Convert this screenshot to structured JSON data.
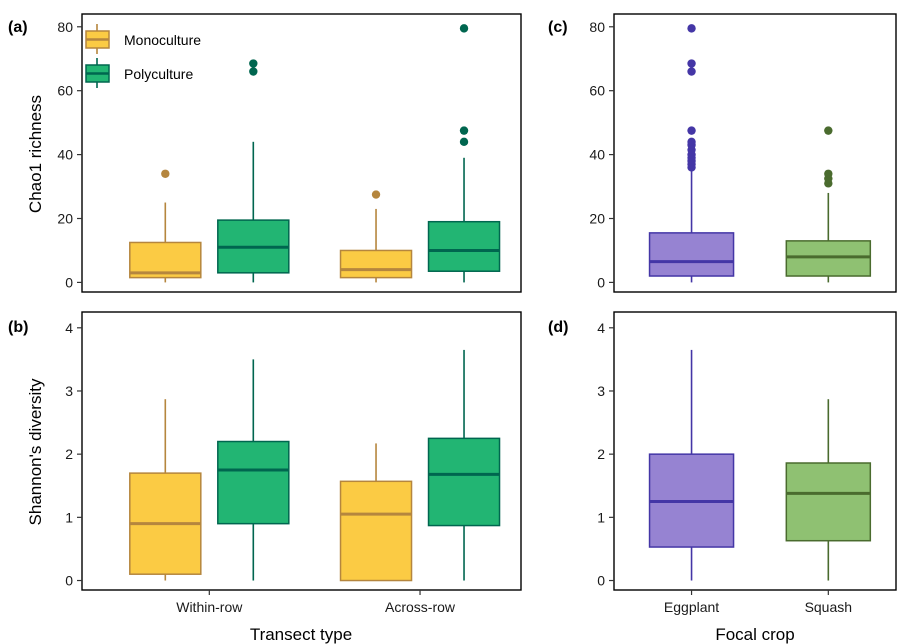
{
  "colors": {
    "mono_fill": "#FBCB44",
    "mono_line": "#B5863E",
    "poly_fill": "#22B573",
    "poly_line": "#00664F",
    "egg_fill": "#9683D2",
    "egg_line": "#4436A6",
    "squash_fill": "#8FC172",
    "squash_line": "#4A6B2E"
  },
  "legend": {
    "items": [
      "Monoculture",
      "Polyculture"
    ],
    "placement": "top-left"
  },
  "chart_data": [
    {
      "panel": "(a)",
      "type": "box",
      "ylabel": "Chao1 richness",
      "ylim": [
        -3,
        84
      ],
      "yticks": [
        0,
        20,
        40,
        60,
        80
      ],
      "categories": [
        "Within-row",
        "Across-row"
      ],
      "series": [
        {
          "name": "Monoculture",
          "boxes": [
            {
              "min": 0,
              "q1": 1.5,
              "median": 3,
              "q3": 12.5,
              "max": 25,
              "outliers": [
                34
              ]
            },
            {
              "min": 0,
              "q1": 1.5,
              "median": 4,
              "q3": 10,
              "max": 23,
              "outliers": [
                27.5
              ]
            }
          ]
        },
        {
          "name": "Polyculture",
          "boxes": [
            {
              "min": 0,
              "q1": 3,
              "median": 11,
              "q3": 19.5,
              "max": 44,
              "outliers": [
                66,
                68.5
              ]
            },
            {
              "min": 0,
              "q1": 3.5,
              "median": 10,
              "q3": 19,
              "max": 39,
              "outliers": [
                44,
                47.5,
                79.5
              ]
            }
          ]
        }
      ]
    },
    {
      "panel": "(b)",
      "type": "box",
      "ylabel": "Shannon's diversity",
      "xlabel": "Transect type",
      "ylim": [
        -0.15,
        4.25
      ],
      "yticks": [
        0,
        1,
        2,
        3,
        4
      ],
      "categories": [
        "Within-row",
        "Across-row"
      ],
      "series": [
        {
          "name": "Monoculture",
          "boxes": [
            {
              "min": 0,
              "q1": 0.1,
              "median": 0.9,
              "q3": 1.7,
              "max": 2.87,
              "outliers": []
            },
            {
              "min": 0,
              "q1": 0,
              "median": 1.05,
              "q3": 1.57,
              "max": 2.17,
              "outliers": []
            }
          ]
        },
        {
          "name": "Polyculture",
          "boxes": [
            {
              "min": 0,
              "q1": 0.9,
              "median": 1.75,
              "q3": 2.2,
              "max": 3.5,
              "outliers": []
            },
            {
              "min": 0,
              "q1": 0.87,
              "median": 1.68,
              "q3": 2.25,
              "max": 3.65,
              "outliers": []
            }
          ]
        }
      ]
    },
    {
      "panel": "(c)",
      "type": "box",
      "ylim": [
        -3,
        84
      ],
      "yticks": [
        0,
        20,
        40,
        60,
        80
      ],
      "categories": [
        "Eggplant",
        "Squash"
      ],
      "boxes": [
        {
          "name": "Eggplant",
          "min": 0,
          "q1": 2,
          "median": 6.5,
          "q3": 15.5,
          "max": 35,
          "outliers": [
            36,
            37,
            38,
            39,
            40,
            41.5,
            43,
            44,
            47.5,
            66,
            68.5,
            79.5
          ]
        },
        {
          "name": "Squash",
          "min": 0,
          "q1": 2,
          "median": 8,
          "q3": 13,
          "max": 28,
          "outliers": [
            31,
            32.5,
            34,
            47.5
          ]
        }
      ]
    },
    {
      "panel": "(d)",
      "type": "box",
      "xlabel": "Focal crop",
      "ylim": [
        -0.15,
        4.25
      ],
      "yticks": [
        0,
        1,
        2,
        3,
        4
      ],
      "categories": [
        "Eggplant",
        "Squash"
      ],
      "boxes": [
        {
          "name": "Eggplant",
          "min": 0,
          "q1": 0.53,
          "median": 1.25,
          "q3": 2.0,
          "max": 3.65,
          "outliers": []
        },
        {
          "name": "Squash",
          "min": 0,
          "q1": 0.63,
          "median": 1.38,
          "q3": 1.86,
          "max": 2.87,
          "outliers": []
        }
      ]
    }
  ]
}
